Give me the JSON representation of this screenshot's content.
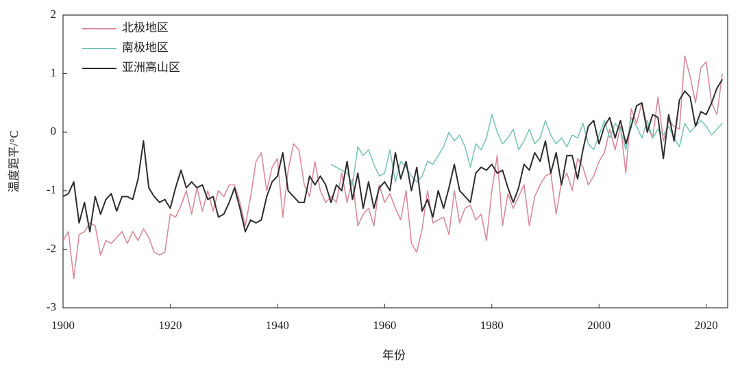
{
  "chart_data": {
    "type": "line",
    "xlabel": "年份",
    "ylabel": "温度距平/°C",
    "x": [
      1900,
      1901,
      1902,
      1903,
      1904,
      1905,
      1906,
      1907,
      1908,
      1909,
      1910,
      1911,
      1912,
      1913,
      1914,
      1915,
      1916,
      1917,
      1918,
      1919,
      1920,
      1921,
      1922,
      1923,
      1924,
      1925,
      1926,
      1927,
      1928,
      1929,
      1930,
      1931,
      1932,
      1933,
      1934,
      1935,
      1936,
      1937,
      1938,
      1939,
      1940,
      1941,
      1942,
      1943,
      1944,
      1945,
      1946,
      1947,
      1948,
      1949,
      1950,
      1951,
      1952,
      1953,
      1954,
      1955,
      1956,
      1957,
      1958,
      1959,
      1960,
      1961,
      1962,
      1963,
      1964,
      1965,
      1966,
      1967,
      1968,
      1969,
      1970,
      1971,
      1972,
      1973,
      1974,
      1975,
      1976,
      1977,
      1978,
      1979,
      1980,
      1981,
      1982,
      1983,
      1984,
      1985,
      1986,
      1987,
      1988,
      1989,
      1990,
      1991,
      1992,
      1993,
      1994,
      1995,
      1996,
      1997,
      1998,
      1999,
      2000,
      2001,
      2002,
      2003,
      2004,
      2005,
      2006,
      2007,
      2008,
      2009,
      2010,
      2011,
      2012,
      2013,
      2014,
      2015,
      2016,
      2017,
      2018,
      2019,
      2020,
      2021,
      2022,
      2023
    ],
    "series": [
      {
        "name": "北极地区",
        "color": "#d98a99",
        "values": [
          -1.85,
          -1.7,
          -2.5,
          -1.75,
          -1.7,
          -1.55,
          -1.6,
          -2.1,
          -1.85,
          -1.9,
          -1.8,
          -1.7,
          -1.9,
          -1.7,
          -1.85,
          -1.65,
          -1.8,
          -2.05,
          -2.1,
          -2.05,
          -1.4,
          -1.45,
          -1.25,
          -1.0,
          -1.4,
          -0.95,
          -1.35,
          -1.0,
          -1.35,
          -1.0,
          -1.1,
          -0.9,
          -0.9,
          -1.2,
          -1.6,
          -1.1,
          -0.5,
          -0.35,
          -1.0,
          -0.6,
          -0.45,
          -1.45,
          -0.65,
          -0.2,
          -0.3,
          -0.9,
          -1.1,
          -0.5,
          -1.0,
          -1.2,
          -1.1,
          -1.2,
          -0.7,
          -1.2,
          -0.8,
          -1.6,
          -1.4,
          -1.3,
          -1.6,
          -0.9,
          -1.2,
          -1.05,
          -1.3,
          -1.5,
          -1.0,
          -1.9,
          -2.05,
          -1.65,
          -1.0,
          -1.55,
          -1.5,
          -1.45,
          -1.75,
          -1.0,
          -1.55,
          -1.3,
          -1.25,
          -1.5,
          -1.4,
          -1.85,
          -1.0,
          -0.4,
          -1.6,
          -1.05,
          -1.3,
          -1.1,
          -0.9,
          -1.6,
          -1.1,
          -0.9,
          -0.75,
          -0.7,
          -1.4,
          -0.85,
          -0.7,
          -1.0,
          -0.45,
          -0.6,
          -0.9,
          -0.75,
          -0.5,
          -0.35,
          0.05,
          -0.3,
          0.1,
          -0.7,
          0.4,
          0.15,
          0.5,
          0.1,
          -0.1,
          0.6,
          -0.15,
          0.2,
          0.1,
          0.05,
          1.3,
          0.95,
          0.5,
          1.1,
          1.2,
          0.5,
          0.3,
          1.0
        ]
      },
      {
        "name": "南极地区",
        "color": "#7cc4b8",
        "values": [
          null,
          null,
          null,
          null,
          null,
          null,
          null,
          null,
          null,
          null,
          null,
          null,
          null,
          null,
          null,
          null,
          null,
          null,
          null,
          null,
          null,
          null,
          null,
          null,
          null,
          null,
          null,
          null,
          null,
          null,
          null,
          null,
          null,
          null,
          null,
          null,
          null,
          null,
          null,
          null,
          null,
          null,
          null,
          null,
          null,
          null,
          null,
          null,
          null,
          null,
          -0.55,
          -0.6,
          -0.65,
          -0.7,
          -0.9,
          -0.25,
          -0.4,
          -0.3,
          -0.55,
          -0.75,
          -0.7,
          -0.3,
          -0.85,
          -0.5,
          -0.6,
          -0.75,
          -0.85,
          -0.75,
          -0.5,
          -0.55,
          -0.4,
          -0.25,
          0.0,
          -0.15,
          -0.05,
          -0.25,
          -0.6,
          -0.2,
          -0.3,
          -0.1,
          0.3,
          0.0,
          -0.2,
          -0.1,
          0.05,
          -0.3,
          -0.15,
          0.05,
          -0.2,
          -0.1,
          0.2,
          -0.05,
          -0.2,
          -0.1,
          -0.25,
          -0.05,
          -0.1,
          0.15,
          -0.2,
          -0.3,
          -0.05,
          0.2,
          -0.1,
          0.15,
          0.05,
          -0.3,
          0.25,
          0.1,
          -0.1,
          0.2,
          -0.1,
          0.05,
          -0.05,
          0.1,
          -0.1,
          -0.25,
          0.15,
          0.0,
          0.1,
          0.2,
          0.1,
          -0.05,
          0.05,
          0.15
        ]
      },
      {
        "name": "亚洲高山区",
        "color": "#2b2b2b",
        "values": [
          -1.1,
          -1.05,
          -0.85,
          -1.55,
          -1.2,
          -1.7,
          -1.1,
          -1.4,
          -1.15,
          -1.05,
          -1.35,
          -1.1,
          -1.1,
          -1.15,
          -0.8,
          -0.15,
          -0.95,
          -1.1,
          -1.2,
          -1.15,
          -1.3,
          -0.95,
          -0.65,
          -0.95,
          -0.85,
          -0.95,
          -0.9,
          -1.15,
          -1.1,
          -1.45,
          -1.4,
          -1.2,
          -0.95,
          -1.3,
          -1.7,
          -1.5,
          -1.55,
          -1.5,
          -1.1,
          -0.85,
          -0.75,
          -0.35,
          -1.0,
          -1.1,
          -1.2,
          -1.2,
          -0.75,
          -0.9,
          -0.75,
          -0.9,
          -1.2,
          -0.9,
          -1.0,
          -0.5,
          -1.15,
          -0.7,
          -1.3,
          -0.85,
          -1.3,
          -0.95,
          -0.85,
          -1.0,
          -0.35,
          -0.8,
          -0.5,
          -1.0,
          -0.6,
          -1.35,
          -1.15,
          -1.45,
          -1.0,
          -1.3,
          -0.95,
          -0.55,
          -1.0,
          -1.1,
          -1.2,
          -0.7,
          -0.6,
          -0.65,
          -0.55,
          -0.7,
          -0.65,
          -0.95,
          -1.2,
          -0.95,
          -0.55,
          -0.65,
          -0.35,
          -0.5,
          -0.15,
          -0.7,
          -0.35,
          -0.9,
          -0.4,
          -0.4,
          -0.8,
          -0.3,
          0.1,
          0.2,
          -0.2,
          0.1,
          0.25,
          -0.1,
          0.2,
          -0.2,
          0.1,
          0.45,
          0.5,
          0.0,
          0.3,
          0.25,
          -0.45,
          0.3,
          -0.15,
          0.55,
          0.7,
          0.6,
          0.1,
          0.35,
          0.3,
          0.5,
          0.75,
          0.9
        ]
      }
    ],
    "xlim": [
      1900,
      2024
    ],
    "xticks": [
      1900,
      1920,
      1940,
      1960,
      1980,
      2000,
      2020
    ],
    "ylim": [
      -3,
      2
    ],
    "yticks": [
      -3,
      -2,
      -1,
      0,
      1,
      2
    ],
    "legend": "upper left",
    "grid": false
  }
}
